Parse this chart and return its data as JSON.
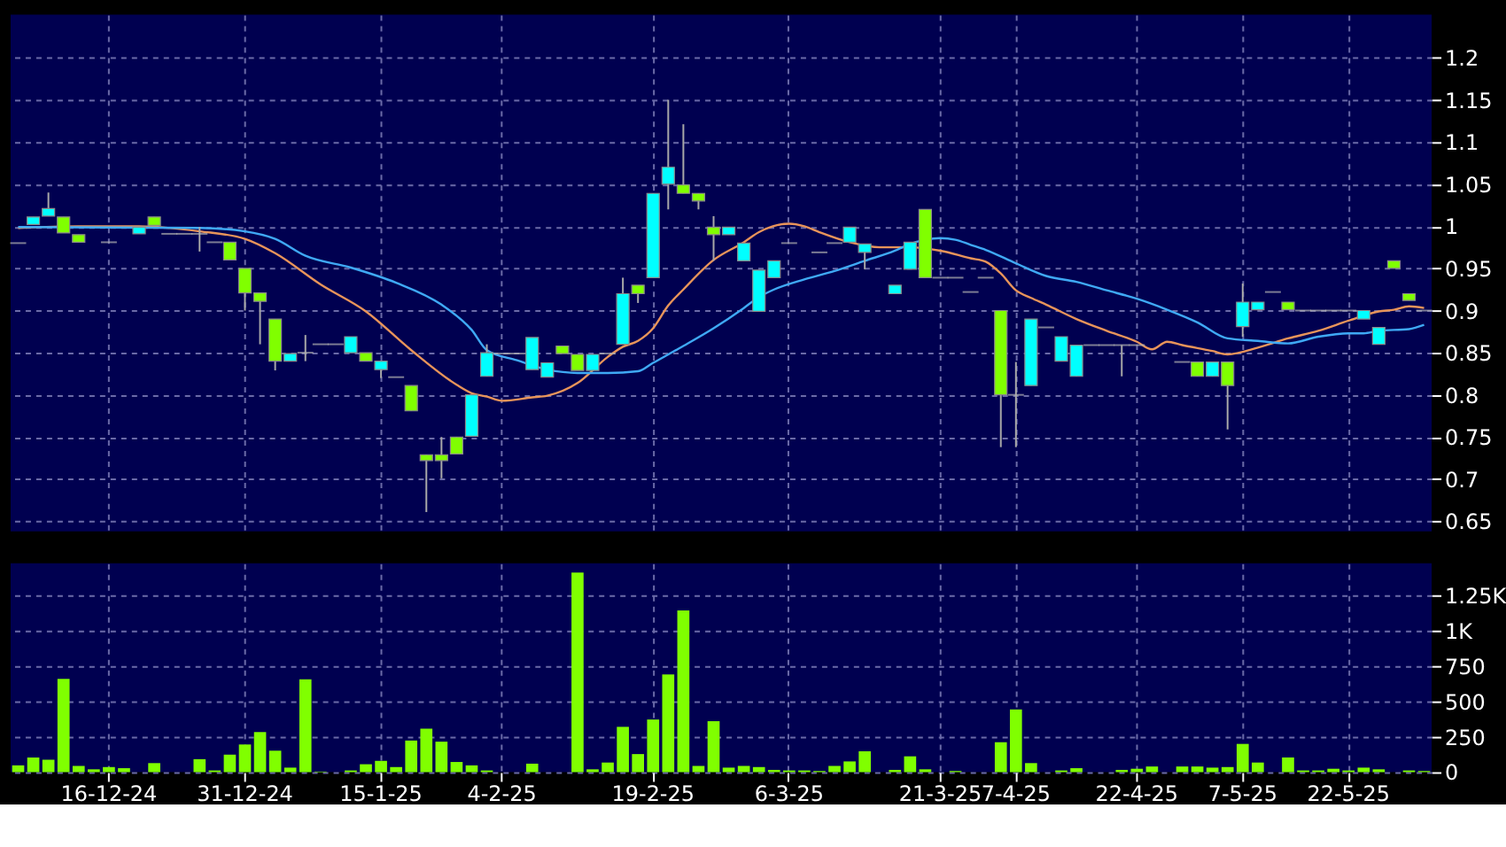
{
  "chart_data": [
    {
      "type": "candlestick",
      "categories": [
        null,
        null,
        null,
        null,
        null,
        null,
        null,
        null,
        null,
        null,
        null,
        null,
        null,
        null,
        null,
        null,
        null,
        null,
        null,
        null,
        null,
        null,
        null,
        null,
        null,
        null,
        null,
        null,
        null,
        null,
        null,
        null,
        null,
        null,
        null,
        null,
        null,
        null,
        null,
        null,
        null,
        null,
        null,
        null,
        null,
        null,
        null,
        null,
        null,
        null,
        null,
        null,
        null,
        null,
        null,
        null,
        null,
        null,
        null,
        null,
        null,
        null,
        null,
        null,
        null,
        null,
        null,
        null,
        null,
        null,
        null,
        null,
        null,
        null,
        null,
        null,
        null,
        null,
        null,
        null,
        null,
        null,
        null,
        null,
        null,
        null,
        null,
        null,
        null,
        null,
        null,
        null,
        null,
        null
      ],
      "ohlc": [
        [
          0.98,
          0.98,
          0.98,
          0.98
        ],
        [
          1.002,
          1.011,
          1.002,
          1.011
        ],
        [
          1.012,
          1.04,
          1.012,
          1.021
        ],
        [
          1.011,
          1.011,
          0.992,
          0.992
        ],
        [
          0.99,
          0.99,
          0.981,
          0.981
        ],
        null,
        [
          0.981,
          0.981,
          0.981,
          0.981
        ],
        null,
        [
          0.991,
          0.999,
          0.991,
          0.999
        ],
        [
          1.011,
          1.011,
          1.001,
          1.001
        ],
        [
          0.991,
          0.991,
          0.991,
          0.991
        ],
        [
          0.991,
          0.991,
          0.991,
          0.991
        ],
        [
          0.991,
          0.999,
          0.97,
          0.991
        ],
        [
          0.981,
          0.981,
          0.981,
          0.981
        ],
        [
          0.981,
          0.981,
          0.96,
          0.96
        ],
        [
          0.95,
          0.95,
          0.9,
          0.921
        ],
        [
          0.921,
          0.921,
          0.86,
          0.911
        ],
        [
          0.89,
          0.89,
          0.829,
          0.84
        ],
        [
          0.84,
          0.849,
          0.84,
          0.849
        ],
        [
          0.85,
          0.871,
          0.84,
          0.85
        ],
        [
          0.86,
          0.86,
          0.86,
          0.86
        ],
        [
          0.86,
          0.86,
          0.86,
          0.86
        ],
        [
          0.85,
          0.869,
          0.85,
          0.869
        ],
        [
          0.85,
          0.85,
          0.84,
          0.84
        ],
        [
          0.83,
          0.84,
          0.82,
          0.84
        ],
        [
          0.821,
          0.821,
          0.821,
          0.821
        ],
        [
          0.811,
          0.811,
          0.781,
          0.781
        ],
        [
          0.729,
          0.729,
          0.661,
          0.722
        ],
        [
          0.729,
          0.75,
          0.701,
          0.722
        ],
        [
          0.75,
          0.75,
          0.73,
          0.73
        ],
        [
          0.751,
          0.8,
          0.751,
          0.8
        ],
        [
          0.822,
          0.86,
          0.822,
          0.85
        ],
        [
          0.849,
          0.849,
          0.849,
          0.849
        ],
        [
          0.849,
          0.849,
          0.849,
          0.849
        ],
        [
          0.83,
          0.868,
          0.83,
          0.868
        ],
        [
          0.821,
          0.838,
          0.821,
          0.838
        ],
        [
          0.858,
          0.858,
          0.849,
          0.849
        ],
        [
          0.848,
          0.848,
          0.829,
          0.829
        ],
        [
          0.829,
          0.848,
          0.829,
          0.848
        ],
        [
          0.849,
          0.849,
          0.849,
          0.849
        ],
        [
          0.86,
          0.939,
          0.86,
          0.92
        ],
        [
          0.93,
          0.93,
          0.909,
          0.92
        ],
        [
          0.939,
          1.039,
          0.939,
          1.039
        ],
        [
          1.05,
          1.15,
          1.02,
          1.07
        ],
        [
          1.049,
          1.121,
          1.039,
          1.039
        ],
        [
          1.039,
          1.039,
          1.02,
          1.03
        ],
        [
          0.999,
          1.012,
          0.959,
          0.99
        ],
        [
          0.99,
          0.999,
          0.99,
          0.999
        ],
        [
          0.959,
          0.98,
          0.959,
          0.98
        ],
        [
          0.899,
          0.948,
          0.899,
          0.948
        ],
        [
          0.939,
          0.959,
          0.939,
          0.959
        ],
        [
          0.98,
          0.98,
          0.98,
          0.98
        ],
        null,
        [
          0.969,
          0.969,
          0.969,
          0.969
        ],
        [
          0.98,
          0.98,
          0.98,
          0.98
        ],
        [
          0.981,
          0.999,
          0.981,
          0.999
        ],
        [
          0.969,
          0.979,
          0.949,
          0.979
        ],
        null,
        [
          0.92,
          0.93,
          0.92,
          0.93
        ],
        [
          0.949,
          0.981,
          0.949,
          0.981
        ],
        [
          1.02,
          1.02,
          0.939,
          0.939
        ],
        [
          0.939,
          0.939,
          0.939,
          0.939
        ],
        [
          0.939,
          0.939,
          0.939,
          0.939
        ],
        [
          0.922,
          0.922,
          0.922,
          0.922
        ],
        [
          0.939,
          0.939,
          0.939,
          0.939
        ],
        [
          0.9,
          0.9,
          0.738,
          0.8
        ],
        [
          0.8,
          0.839,
          0.738,
          0.8
        ],
        [
          0.811,
          0.89,
          0.811,
          0.89
        ],
        [
          0.88,
          0.88,
          0.88,
          0.88
        ],
        [
          0.84,
          0.869,
          0.84,
          0.869
        ],
        [
          0.822,
          0.859,
          0.822,
          0.859
        ],
        [
          0.859,
          0.859,
          0.859,
          0.859
        ],
        [
          0.859,
          0.859,
          0.859,
          0.859
        ],
        [
          0.859,
          0.859,
          0.822,
          0.859
        ],
        [
          0.859,
          0.859,
          0.859,
          0.859
        ],
        null,
        null,
        [
          0.839,
          0.839,
          0.839,
          0.839
        ],
        [
          0.839,
          0.839,
          0.822,
          0.822
        ],
        [
          0.822,
          0.839,
          0.822,
          0.839
        ],
        [
          0.839,
          0.839,
          0.759,
          0.811
        ],
        [
          0.881,
          0.932,
          0.869,
          0.91
        ],
        [
          0.901,
          0.91,
          0.901,
          0.91
        ],
        [
          0.922,
          0.922,
          0.922,
          0.922
        ],
        [
          0.91,
          0.91,
          0.901,
          0.901
        ],
        [
          0.9,
          0.9,
          0.9,
          0.9
        ],
        [
          0.9,
          0.9,
          0.9,
          0.9
        ],
        [
          0.9,
          0.9,
          0.9,
          0.9
        ],
        [
          0.9,
          0.9,
          0.9,
          0.9
        ],
        [
          0.89,
          0.9,
          0.89,
          0.9
        ],
        [
          0.86,
          0.88,
          0.86,
          0.88
        ],
        [
          0.959,
          0.959,
          0.95,
          0.95
        ],
        [
          0.92,
          0.92,
          0.912,
          0.912
        ],
        [
          0.9,
          0.9,
          0.9,
          0.9
        ]
      ],
      "colors": [
        "#b0b0b0",
        "#00ffff",
        "#00ffff",
        "#80ff00",
        "#80ff00",
        null,
        "#b0b0b0",
        null,
        "#00ffff",
        "#80ff00",
        "#b0b0b0",
        "#b0b0b0",
        "#b0b0b0",
        "#b0b0b0",
        "#80ff00",
        "#80ff00",
        "#80ff00",
        "#80ff00",
        "#00ffff",
        "#b0b0b0",
        "#b0b0b0",
        "#b0b0b0",
        "#00ffff",
        "#80ff00",
        "#00ffff",
        "#b0b0b0",
        "#80ff00",
        "#80ff00",
        "#80ff00",
        "#80ff00",
        "#00ffff",
        "#00ffff",
        "#b0b0b0",
        "#b0b0b0",
        "#00ffff",
        "#00ffff",
        "#80ff00",
        "#80ff00",
        "#00ffff",
        "#b0b0b0",
        "#00ffff",
        "#80ff00",
        "#00ffff",
        "#00ffff",
        "#80ff00",
        "#80ff00",
        "#80ff00",
        "#00ffff",
        "#00ffff",
        "#00ffff",
        "#00ffff",
        "#b0b0b0",
        null,
        "#b0b0b0",
        "#b0b0b0",
        "#00ffff",
        "#00ffff",
        null,
        "#00ffff",
        "#00ffff",
        "#80ff00",
        "#b0b0b0",
        "#b0b0b0",
        "#b0b0b0",
        "#b0b0b0",
        "#80ff00",
        "#b0b0b0",
        "#00ffff",
        "#b0b0b0",
        "#00ffff",
        "#00ffff",
        "#b0b0b0",
        "#b0b0b0",
        "#b0b0b0",
        "#b0b0b0",
        null,
        null,
        "#b0b0b0",
        "#80ff00",
        "#00ffff",
        "#80ff00",
        "#00ffff",
        "#00ffff",
        "#b0b0b0",
        "#80ff00",
        "#b0b0b0",
        "#b0b0b0",
        "#b0b0b0",
        "#b0b0b0",
        "#00ffff",
        "#00ffff",
        "#80ff00",
        "#80ff00",
        "#b0b0b0"
      ],
      "series": [
        {
          "type": "line",
          "color": "#e8945a",
          "values": [
            0.998,
            null,
            null,
            null,
            1.0,
            null,
            null,
            null,
            1.0,
            null,
            null,
            null,
            0.994,
            null,
            null,
            0.985,
            null,
            0.968,
            null,
            null,
            0.931,
            null,
            null,
            0.899,
            null,
            null,
            0.853,
            null,
            null,
            0.812,
            0.802,
            0.798,
            0.793,
            null,
            0.797,
            0.799,
            null,
            0.814,
            null,
            0.845,
            0.857,
            0.864,
            0.879,
            0.906,
            0.925,
            null,
            0.96,
            null,
            0.981,
            0.993,
            null,
            1.003,
            1.0,
            0.993,
            null,
            0.981,
            null,
            0.975,
            null,
            0.975,
            null,
            0.971,
            null,
            0.962,
            0.958,
            0.944,
            0.924,
            0.915,
            0.907,
            null,
            0.89,
            null,
            0.876,
            null,
            0.863,
            0.854,
            0.863,
            0.859,
            null,
            0.852,
            0.848,
            null,
            0.856,
            null,
            0.867,
            null,
            0.876,
            null,
            0.888,
            null,
            0.899,
            0.901,
            0.905,
            0.903
          ]
        },
        {
          "type": "line",
          "color": "#3fa9f5",
          "values": [
            0.999,
            null,
            null,
            null,
            null,
            null,
            null,
            null,
            null,
            null,
            null,
            null,
            0.998,
            null,
            null,
            0.994,
            null,
            0.985,
            null,
            0.965,
            null,
            null,
            0.951,
            null,
            null,
            0.933,
            null,
            null,
            0.907,
            null,
            0.877,
            0.853,
            null,
            0.841,
            null,
            0.83,
            null,
            0.826,
            null,
            0.826,
            null,
            0.828,
            0.838,
            null,
            0.858,
            null,
            0.879,
            null,
            0.903,
            0.916,
            0.925,
            null,
            0.937,
            null,
            0.947,
            null,
            0.959,
            null,
            0.971,
            0.979,
            0.984,
            0.986,
            0.984,
            0.978,
            0.972,
            null,
            0.956,
            null,
            0.941,
            null,
            0.934,
            null,
            0.924,
            null,
            0.914,
            null,
            0.901,
            null,
            0.886,
            null,
            0.867,
            null,
            0.864,
            null,
            0.861,
            null,
            0.869,
            null,
            0.873,
            0.873,
            0.876,
            null,
            0.878,
            0.883
          ]
        }
      ],
      "ylim": [
        0.638,
        1.251
      ],
      "yticks": [
        0.65,
        0.7,
        0.75,
        0.8,
        0.85,
        0.9,
        0.95,
        1,
        1.05,
        1.1,
        1.15,
        1.2
      ],
      "grid": true,
      "tick_labels": "y"
    },
    {
      "type": "bar",
      "categories": [
        null,
        null,
        null,
        null,
        null,
        null,
        "16-12-24",
        null,
        null,
        null,
        null,
        null,
        null,
        null,
        null,
        "31-12-24",
        null,
        null,
        null,
        null,
        null,
        null,
        null,
        null,
        "15-1-25",
        null,
        null,
        null,
        null,
        null,
        null,
        null,
        "4-2-25",
        null,
        null,
        null,
        null,
        null,
        null,
        null,
        null,
        null,
        "19-2-25",
        null,
        null,
        null,
        null,
        null,
        null,
        null,
        null,
        "6-3-25",
        null,
        null,
        null,
        null,
        null,
        null,
        null,
        null,
        null,
        "21-3-25",
        null,
        null,
        null,
        null,
        "7-4-25",
        null,
        null,
        null,
        null,
        null,
        null,
        null,
        "22-4-25",
        null,
        null,
        null,
        null,
        null,
        null,
        "7-5-25",
        null,
        null,
        null,
        null,
        null,
        null,
        "22-5-25",
        null,
        null,
        null,
        null,
        null
      ],
      "values": [
        48,
        104,
        88,
        661,
        44,
        20,
        36,
        28,
        0,
        64,
        0,
        0,
        92,
        12,
        124,
        196,
        284,
        152,
        32,
        657,
        4,
        0,
        12,
        56,
        80,
        36,
        224,
        308,
        216,
        72,
        48,
        12,
        0,
        0,
        60,
        0,
        0,
        1414,
        20,
        68,
        321,
        128,
        373,
        693,
        1146,
        44,
        361,
        32,
        44,
        36,
        16,
        12,
        12,
        8,
        44,
        76,
        148,
        0,
        16,
        112,
        20,
        0,
        8,
        0,
        0,
        212,
        445,
        64,
        0,
        12,
        28,
        0,
        0,
        16,
        24,
        40,
        0,
        40,
        40,
        32,
        36,
        200,
        68,
        0,
        104,
        12,
        12,
        24,
        12,
        32,
        20,
        0,
        12,
        8
      ],
      "color": "#80ff00",
      "ylim": [
        0,
        1480
      ],
      "yticks": [
        0,
        250,
        500,
        750,
        {
          "value": 1000,
          "label": "1K"
        },
        {
          "value": 1250,
          "label": "1.25K"
        }
      ],
      "grid": true
    }
  ]
}
